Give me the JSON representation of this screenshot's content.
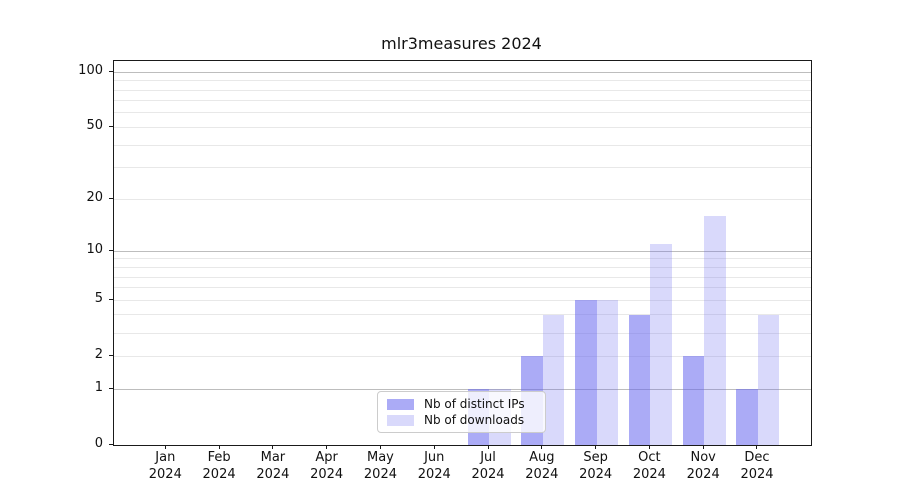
{
  "chart_data": {
    "type": "bar",
    "title": "mlr3measures 2024",
    "year_label": "2024",
    "categories": [
      "Jan",
      "Feb",
      "Mar",
      "Apr",
      "May",
      "Jun",
      "Jul",
      "Aug",
      "Sep",
      "Oct",
      "Nov",
      "Dec"
    ],
    "series": [
      {
        "name": "Nb of distinct IPs",
        "values": [
          0,
          0,
          0,
          0,
          0,
          0,
          1,
          2,
          5,
          4,
          2,
          1
        ]
      },
      {
        "name": "Nb of downloads",
        "values": [
          0,
          0,
          0,
          0,
          0,
          0,
          1,
          4,
          5,
          11,
          16,
          4
        ]
      }
    ],
    "yscale": "log1p",
    "ylim": [
      0,
      115
    ],
    "yticks": [
      0,
      1,
      2,
      5,
      10,
      20,
      50,
      100
    ],
    "gridlines": {
      "major": [
        1,
        10,
        100
      ],
      "minor": [
        2,
        3,
        4,
        5,
        6,
        7,
        8,
        9,
        20,
        30,
        40,
        50,
        60,
        70,
        80,
        90
      ]
    },
    "grid": true,
    "legend_position": "lower center",
    "xlabel": "",
    "ylabel": ""
  },
  "colors": {
    "bars": [
      "rgba(102,102,238,0.55)",
      "rgba(102,102,238,0.25)"
    ],
    "grid_major": "#bdbdbd",
    "grid_minor": "#e8e8e8",
    "spine": "#1a1a1a",
    "text": "#111111",
    "legend_border": "#cccccc"
  }
}
